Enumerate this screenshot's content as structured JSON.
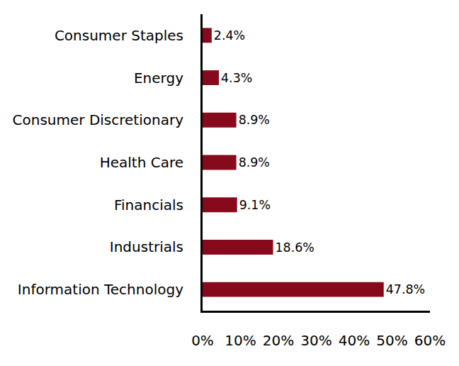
{
  "chart_data": {
    "type": "bar",
    "orientation": "horizontal",
    "categories": [
      "Consumer Staples",
      "Energy",
      "Consumer Discretionary",
      "Health Care",
      "Financials",
      "Industrials",
      "Information Technology"
    ],
    "values": [
      2.4,
      4.3,
      8.9,
      8.9,
      9.1,
      18.6,
      47.8
    ],
    "value_labels": [
      "2.4%",
      "4.3%",
      "8.9%",
      "8.9%",
      "9.1%",
      "18.6%",
      "47.8%"
    ],
    "color": "#870a1c",
    "xlim": [
      0,
      60
    ],
    "xticks": [
      {
        "value": 0,
        "label": "0%"
      },
      {
        "value": 10,
        "label": "10%"
      },
      {
        "value": 20,
        "label": "20%"
      },
      {
        "value": 30,
        "label": "30%"
      },
      {
        "value": 40,
        "label": "40%"
      },
      {
        "value": 50,
        "label": "50%"
      },
      {
        "value": 60,
        "label": "60%"
      }
    ],
    "data_labels": true,
    "grid": false
  }
}
